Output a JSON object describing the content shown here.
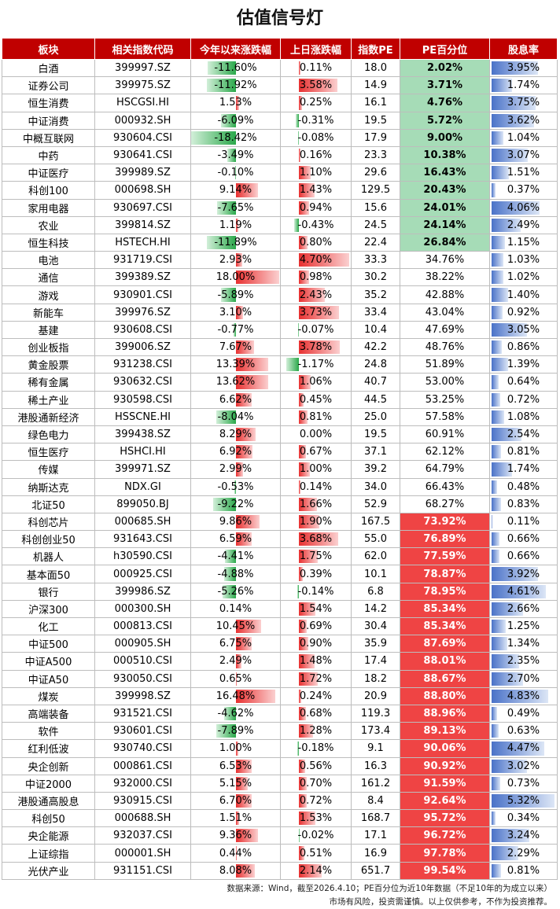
{
  "title": "估值信号灯",
  "headers": [
    "板块",
    "相关指数代码",
    "今年以来涨跌幅",
    "上日涨跌幅",
    "指数PE",
    "PE百分位",
    "股息率"
  ],
  "footer": {
    "line1": "数据来源：Wind，截至2026.4.10；PE百分位为近10年数据（不足10年的为成立以来）",
    "line2": "市场有风险，投资需谨慎。以上仅供参考，不作为投资推荐。"
  },
  "colors": {
    "header": "#c00000",
    "pe_low": "#a6dcb7",
    "pe_high": "#ef4444",
    "bar_up": "#e83030",
    "bar_down": "#2aa84a",
    "dividend": "#4a72c8"
  },
  "chart_data": {
    "type": "table",
    "columns": [
      "板块",
      "相关指数代码",
      "今年以来涨跌幅",
      "上日涨跌幅",
      "指数PE",
      "PE百分位",
      "股息率"
    ],
    "rows": [
      [
        "白酒",
        "399997.SZ",
        "-11.60%",
        "0.11%",
        "18.0",
        "2.02%",
        "3.95%"
      ],
      [
        "证券公司",
        "399975.SZ",
        "-11.92%",
        "3.58%",
        "14.9",
        "3.71%",
        "1.74%"
      ],
      [
        "恒生消费",
        "HSCGSI.HI",
        "1.53%",
        "0.25%",
        "16.1",
        "4.76%",
        "3.75%"
      ],
      [
        "中证消费",
        "000932.SH",
        "-6.09%",
        "-0.31%",
        "19.5",
        "5.72%",
        "3.62%"
      ],
      [
        "中概互联网",
        "930604.CSI",
        "-18.42%",
        "-0.08%",
        "17.9",
        "9.00%",
        "1.04%"
      ],
      [
        "中药",
        "930641.CSI",
        "-3.49%",
        "0.16%",
        "23.3",
        "10.38%",
        "3.07%"
      ],
      [
        "中证医疗",
        "399989.SZ",
        "-0.10%",
        "1.10%",
        "29.6",
        "16.43%",
        "1.51%"
      ],
      [
        "科创100",
        "000698.SH",
        "9.14%",
        "1.43%",
        "129.5",
        "20.43%",
        "0.37%"
      ],
      [
        "家用电器",
        "930697.CSI",
        "-7.65%",
        "0.94%",
        "15.6",
        "24.01%",
        "4.06%"
      ],
      [
        "农业",
        "399814.SZ",
        "1.19%",
        "-0.43%",
        "24.5",
        "24.14%",
        "2.49%"
      ],
      [
        "恒生科技",
        "HSTECH.HI",
        "-11.89%",
        "0.80%",
        "22.4",
        "26.84%",
        "1.15%"
      ],
      [
        "电池",
        "931719.CSI",
        "2.93%",
        "4.70%",
        "33.3",
        "34.76%",
        "1.03%"
      ],
      [
        "通信",
        "399389.SZ",
        "18.00%",
        "0.98%",
        "30.2",
        "38.22%",
        "1.02%"
      ],
      [
        "游戏",
        "930901.CSI",
        "-5.89%",
        "2.43%",
        "35.2",
        "42.88%",
        "1.40%"
      ],
      [
        "新能车",
        "399976.SZ",
        "3.10%",
        "3.73%",
        "33.4",
        "43.04%",
        "0.92%"
      ],
      [
        "基建",
        "930608.CSI",
        "-0.77%",
        "-0.07%",
        "10.4",
        "47.69%",
        "3.05%"
      ],
      [
        "创业板指",
        "399006.SZ",
        "7.67%",
        "3.78%",
        "42.2",
        "48.76%",
        "0.86%"
      ],
      [
        "黄金股票",
        "931238.CSI",
        "13.39%",
        "-1.17%",
        "24.8",
        "51.89%",
        "1.39%"
      ],
      [
        "稀有金属",
        "930632.CSI",
        "13.62%",
        "1.06%",
        "40.7",
        "53.00%",
        "0.64%"
      ],
      [
        "稀土产业",
        "930598.CSI",
        "6.62%",
        "0.45%",
        "44.5",
        "53.25%",
        "0.72%"
      ],
      [
        "港股通新经济",
        "HSSCNE.HI",
        "-8.04%",
        "0.81%",
        "25.0",
        "57.58%",
        "1.08%"
      ],
      [
        "绿色电力",
        "399438.SZ",
        "8.29%",
        "0.00%",
        "19.5",
        "60.91%",
        "2.54%"
      ],
      [
        "恒生医疗",
        "HSHCI.HI",
        "6.92%",
        "0.67%",
        "37.1",
        "62.12%",
        "0.81%"
      ],
      [
        "传媒",
        "399971.SZ",
        "2.99%",
        "1.00%",
        "39.2",
        "64.79%",
        "1.74%"
      ],
      [
        "纳斯达克",
        "NDX.GI",
        "-0.53%",
        "0.14%",
        "34.0",
        "66.43%",
        "0.48%"
      ],
      [
        "北证50",
        "899050.BJ",
        "-9.22%",
        "1.66%",
        "52.9",
        "68.27%",
        "0.83%"
      ],
      [
        "科创芯片",
        "000685.SH",
        "9.86%",
        "1.90%",
        "167.5",
        "73.92%",
        "0.11%"
      ],
      [
        "科创创业50",
        "931643.CSI",
        "6.59%",
        "3.68%",
        "55.0",
        "76.89%",
        "0.66%"
      ],
      [
        "机器人",
        "h30590.CSI",
        "-4.41%",
        "1.75%",
        "62.0",
        "77.59%",
        "0.66%"
      ],
      [
        "基本面50",
        "000925.CSI",
        "-4.88%",
        "0.39%",
        "10.1",
        "78.87%",
        "3.92%"
      ],
      [
        "银行",
        "399986.SZ",
        "-5.26%",
        "-0.14%",
        "6.8",
        "78.95%",
        "4.61%"
      ],
      [
        "沪深300",
        "000300.SH",
        "0.14%",
        "1.54%",
        "14.2",
        "85.34%",
        "2.66%"
      ],
      [
        "化工",
        "000813.CSI",
        "10.45%",
        "0.69%",
        "30.4",
        "85.34%",
        "1.25%"
      ],
      [
        "中证500",
        "000905.SH",
        "6.75%",
        "0.90%",
        "35.9",
        "87.69%",
        "1.34%"
      ],
      [
        "中证A500",
        "000510.CSI",
        "2.49%",
        "1.48%",
        "17.4",
        "88.01%",
        "2.35%"
      ],
      [
        "中证A50",
        "930050.CSI",
        "0.65%",
        "1.72%",
        "18.2",
        "88.67%",
        "2.70%"
      ],
      [
        "煤炭",
        "399998.SZ",
        "16.48%",
        "0.24%",
        "20.9",
        "88.80%",
        "4.83%"
      ],
      [
        "高端装备",
        "931521.CSI",
        "-4.62%",
        "0.68%",
        "119.3",
        "88.96%",
        "0.49%"
      ],
      [
        "软件",
        "930601.CSI",
        "-7.89%",
        "1.28%",
        "173.4",
        "89.13%",
        "0.63%"
      ],
      [
        "红利低波",
        "930740.CSI",
        "1.00%",
        "-0.18%",
        "9.1",
        "90.06%",
        "4.47%"
      ],
      [
        "央企创新",
        "000861.CSI",
        "6.53%",
        "0.56%",
        "16.3",
        "90.92%",
        "3.02%"
      ],
      [
        "中证2000",
        "932000.CSI",
        "5.15%",
        "0.70%",
        "161.2",
        "91.59%",
        "0.73%"
      ],
      [
        "港股通高股息",
        "930915.CSI",
        "6.70%",
        "0.72%",
        "8.4",
        "92.64%",
        "5.32%"
      ],
      [
        "科创50",
        "000688.SH",
        "1.51%",
        "1.53%",
        "168.7",
        "95.72%",
        "0.34%"
      ],
      [
        "央企能源",
        "932037.CSI",
        "9.36%",
        "-0.02%",
        "17.1",
        "96.72%",
        "3.24%"
      ],
      [
        "上证综指",
        "000001.SH",
        "0.44%",
        "0.51%",
        "16.9",
        "97.78%",
        "2.29%"
      ],
      [
        "光伏产业",
        "931151.CSI",
        "8.08%",
        "2.14%",
        "651.7",
        "99.54%",
        "0.81%"
      ]
    ]
  }
}
